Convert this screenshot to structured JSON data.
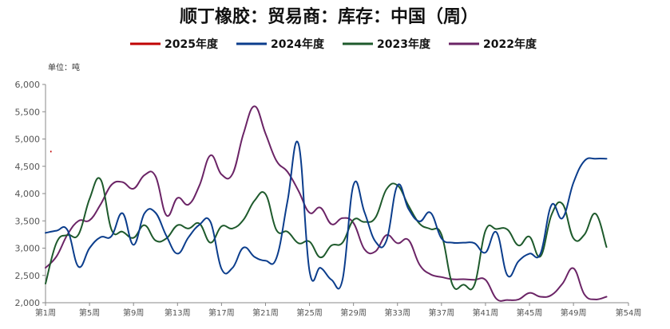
{
  "chart_data": {
    "type": "line",
    "title": "顺丁橡胶：贸易商：库存：中国（周）",
    "unit_label": "单位：吨",
    "xlabel": "",
    "ylabel": "",
    "ylim": [
      2000,
      6000
    ],
    "yticks": [
      "2,000",
      "2,500",
      "3,000",
      "3,500",
      "4,000",
      "4,500",
      "5,000",
      "5,500",
      "6,000"
    ],
    "xlim": [
      1,
      54
    ],
    "xtick_weeks": [
      1,
      5,
      9,
      13,
      17,
      21,
      25,
      29,
      33,
      37,
      41,
      45,
      49,
      54
    ],
    "xticks": [
      "第1周",
      "第5周",
      "第9周",
      "第13周",
      "第17周",
      "第21周",
      "第25周",
      "第29周",
      "第33周",
      "第37周",
      "第41周",
      "第45周",
      "第49周",
      "第54周"
    ],
    "grid": false,
    "legend_position": "top-center",
    "series": [
      {
        "name": "2025年度",
        "color": "#c00000",
        "x": [
          1
        ],
        "values": [
          4770
        ]
      },
      {
        "name": "2024年度",
        "color": "#0b3d8c",
        "x": [
          1,
          2,
          3,
          4,
          5,
          6,
          7,
          8,
          9,
          10,
          11,
          12,
          13,
          14,
          15,
          16,
          17,
          18,
          19,
          20,
          21,
          22,
          23,
          24,
          25,
          26,
          27,
          28,
          29,
          30,
          31,
          32,
          33,
          34,
          35,
          36,
          37,
          38,
          39,
          40,
          41,
          42,
          43,
          44,
          45,
          46,
          47,
          48,
          49,
          50,
          51,
          52
        ],
        "values": [
          3280,
          3320,
          3330,
          2660,
          3000,
          3200,
          3220,
          3640,
          3060,
          3640,
          3650,
          3220,
          2900,
          3200,
          3430,
          3480,
          2620,
          2640,
          3010,
          2840,
          2770,
          2820,
          3860,
          4910,
          2580,
          2640,
          2420,
          2420,
          4160,
          3660,
          3120,
          3140,
          4150,
          3720,
          3490,
          3650,
          3180,
          3100,
          3100,
          3090,
          2920,
          3290,
          2500,
          2760,
          2900,
          2900,
          3790,
          3550,
          4200,
          4600,
          4640,
          4640
        ]
      },
      {
        "name": "2023年度",
        "color": "#1e5a2c",
        "x": [
          1,
          2,
          3,
          4,
          5,
          6,
          7,
          8,
          9,
          10,
          11,
          12,
          13,
          14,
          15,
          16,
          17,
          18,
          19,
          20,
          21,
          22,
          23,
          24,
          25,
          26,
          27,
          28,
          29,
          30,
          31,
          32,
          33,
          34,
          35,
          36,
          37,
          38,
          39,
          40,
          41,
          42,
          43,
          44,
          45,
          46,
          47,
          48,
          49,
          50,
          51,
          52
        ],
        "values": [
          2350,
          3100,
          3240,
          3250,
          3900,
          4260,
          3340,
          3300,
          3190,
          3420,
          3140,
          3180,
          3420,
          3360,
          3450,
          3100,
          3400,
          3360,
          3520,
          3870,
          3990,
          3330,
          3300,
          3090,
          3120,
          2830,
          3050,
          3100,
          3520,
          3480,
          3560,
          4080,
          4150,
          3780,
          3450,
          3350,
          3250,
          2330,
          2330,
          2330,
          3320,
          3350,
          3340,
          3050,
          3210,
          2850,
          3610,
          3810,
          3180,
          3250,
          3630,
          3020
        ]
      },
      {
        "name": "2022年度",
        "color": "#6b2466",
        "x": [
          1,
          2,
          3,
          4,
          5,
          6,
          7,
          8,
          9,
          10,
          11,
          12,
          13,
          14,
          15,
          16,
          17,
          18,
          19,
          20,
          21,
          22,
          23,
          24,
          25,
          26,
          27,
          28,
          29,
          30,
          31,
          32,
          33,
          34,
          35,
          36,
          37,
          38,
          39,
          40,
          41,
          42,
          43,
          44,
          45,
          46,
          47,
          48,
          49,
          50,
          51,
          52
        ],
        "values": [
          2640,
          2850,
          3250,
          3500,
          3510,
          3800,
          4160,
          4210,
          4090,
          4340,
          4320,
          3600,
          3920,
          3800,
          4150,
          4700,
          4350,
          4360,
          5100,
          5600,
          5100,
          4600,
          4400,
          4050,
          3650,
          3740,
          3440,
          3550,
          3460,
          2980,
          2940,
          3240,
          3090,
          3150,
          2700,
          2520,
          2470,
          2430,
          2430,
          2420,
          2420,
          2070,
          2050,
          2060,
          2180,
          2110,
          2140,
          2350,
          2630,
          2150,
          2060,
          2110
        ]
      }
    ]
  }
}
